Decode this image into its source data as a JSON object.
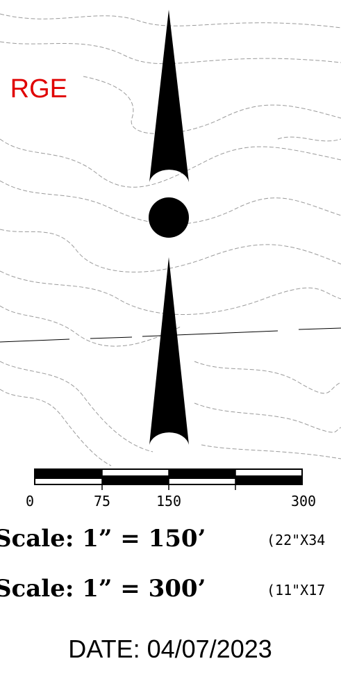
{
  "map_label": "RGE",
  "scale_bar": {
    "labels": [
      "0",
      "75",
      "150",
      "300"
    ]
  },
  "scales": [
    {
      "text": "Scale: 1” = 150’",
      "sheet": "(22\"X34"
    },
    {
      "text": "Scale: 1” = 300’",
      "sheet": "(11\"X17"
    }
  ],
  "date": "DATE:  04/07/2023"
}
